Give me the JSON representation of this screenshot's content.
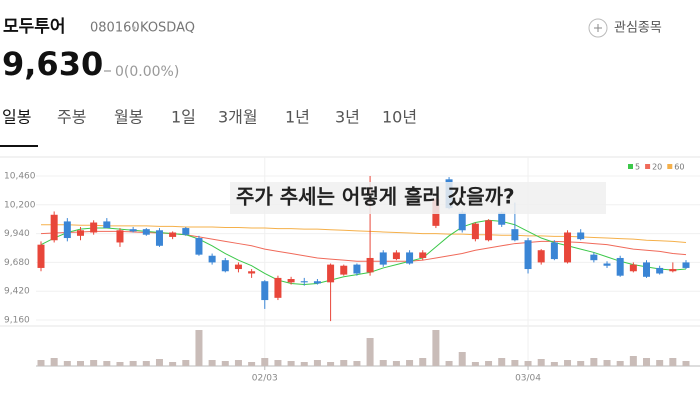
{
  "header": {
    "name": "모두투어",
    "code": "080160",
    "market": "KOSDAQ",
    "watchlist": "관심종목",
    "price": "9,630",
    "change": "0(0.00%)"
  },
  "tabs": [
    "일봉",
    "주봉",
    "월봉",
    "1일",
    "3개월",
    "1년",
    "3년",
    "10년"
  ],
  "selected_tab": 0,
  "chart_data": {
    "type": "candlestick",
    "annotation": "주가 추세는 어떻게 흘러 갔을까?",
    "categories": [
      null,
      null,
      null,
      null,
      null,
      null,
      null,
      null,
      null,
      null,
      null,
      null,
      null,
      null,
      null,
      null,
      null,
      "02/03",
      null,
      null,
      null,
      null,
      null,
      null,
      null,
      null,
      null,
      null,
      null,
      null,
      null,
      null,
      null,
      null,
      null,
      null,
      null,
      "03/04",
      null,
      null,
      null,
      null,
      null,
      null,
      null,
      null,
      null,
      null,
      null,
      null
    ],
    "open": [
      9630,
      9880,
      10050,
      9920,
      9950,
      10050,
      9860,
      9980,
      9980,
      9970,
      9910,
      9990,
      9900,
      9740,
      9700,
      9620,
      9580,
      9510,
      9360,
      9500,
      9510,
      9510,
      9500,
      9570,
      9660,
      9590,
      9770,
      9710,
      9770,
      9720,
      10010,
      10430,
      10130,
      9890,
      9880,
      10130,
      9980,
      9880,
      9680,
      9860,
      9680,
      9950,
      9750,
      9670,
      9720,
      9600,
      9680,
      9630,
      9600,
      9680
    ],
    "high": [
      9870,
      10140,
      10080,
      10000,
      10060,
      10080,
      9990,
      10000,
      9990,
      9990,
      9960,
      10000,
      9920,
      9760,
      9720,
      9680,
      9620,
      9520,
      9560,
      9550,
      9540,
      9530,
      9670,
      9660,
      9670,
      10460,
      9790,
      9790,
      9790,
      9790,
      10260,
      10450,
      10150,
      10040,
      10070,
      10140,
      10220,
      9900,
      9800,
      9880,
      9970,
      9980,
      9770,
      9690,
      9740,
      9680,
      9700,
      9650,
      9680,
      9700
    ],
    "low": [
      9600,
      9860,
      9870,
      9880,
      9930,
      9990,
      9820,
      9950,
      9920,
      9820,
      9890,
      9920,
      9740,
      9660,
      9590,
      9590,
      9540,
      9260,
      9340,
      9480,
      9470,
      9480,
      9150,
      9560,
      9560,
      9560,
      9640,
      9700,
      9660,
      9700,
      9990,
      10160,
      9950,
      9870,
      9870,
      10000,
      9870,
      9580,
      9660,
      9700,
      9670,
      9880,
      9680,
      9630,
      9550,
      9590,
      9540,
      9570,
      9590,
      9620
    ],
    "close": [
      9840,
      10110,
      9900,
      9970,
      10040,
      9990,
      9970,
      9960,
      9930,
      9830,
      9950,
      9930,
      9750,
      9680,
      9600,
      9660,
      9600,
      9340,
      9540,
      9530,
      9500,
      9490,
      9660,
      9650,
      9580,
      9720,
      9660,
      9770,
      9670,
      9770,
      10250,
      10170,
      9970,
      10030,
      10060,
      10020,
      9880,
      9620,
      9790,
      9710,
      9950,
      9890,
      9700,
      9650,
      9560,
      9660,
      9550,
      9580,
      9620,
      9630
    ],
    "volume": [
      6,
      8,
      5,
      5,
      6,
      5,
      4,
      5,
      5,
      7,
      4,
      6,
      36,
      6,
      5,
      6,
      4,
      8,
      6,
      5,
      4,
      6,
      4,
      6,
      5,
      28,
      6,
      5,
      6,
      8,
      36,
      5,
      14,
      4,
      5,
      8,
      6,
      5,
      7,
      4,
      6,
      5,
      8,
      6,
      5,
      10,
      8,
      6,
      8,
      5
    ],
    "up_color": "#e8463a",
    "down_color": "#3a85d5",
    "volume_color": "#c9bcb8",
    "series": [
      {
        "name": "5",
        "color": "#3cc84a",
        "values": [
          9840,
          9900,
          9950,
          9980,
          9990,
          9990,
          9980,
          9970,
          9960,
          9950,
          9940,
          9930,
          9890,
          9830,
          9760,
          9700,
          9650,
          9580,
          9520,
          9490,
          9480,
          9490,
          9520,
          9550,
          9570,
          9590,
          9630,
          9660,
          9690,
          9720,
          9820,
          9920,
          10000,
          10040,
          10060,
          10050,
          10020,
          9960,
          9900,
          9860,
          9830,
          9800,
          9770,
          9730,
          9690,
          9660,
          9640,
          9620,
          9610,
          9620
        ]
      },
      {
        "name": "20",
        "color": "#f06a5a",
        "values": [
          9940,
          9945,
          9950,
          9955,
          9960,
          9960,
          9960,
          9955,
          9950,
          9945,
          9940,
          9930,
          9910,
          9890,
          9870,
          9850,
          9830,
          9800,
          9780,
          9760,
          9740,
          9720,
          9710,
          9700,
          9690,
          9690,
          9690,
          9690,
          9690,
          9700,
          9720,
          9740,
          9760,
          9790,
          9810,
          9830,
          9850,
          9860,
          9870,
          9870,
          9865,
          9860,
          9850,
          9840,
          9820,
          9800,
          9790,
          9780,
          9760,
          9750
        ]
      },
      {
        "name": "60",
        "color": "#f5b04a",
        "values": [
          10020,
          10020,
          10020,
          10015,
          10015,
          10010,
          10010,
          10010,
          10010,
          10005,
          10005,
          10000,
          10000,
          10000,
          9995,
          9995,
          9990,
          9990,
          9985,
          9985,
          9980,
          9980,
          9975,
          9970,
          9965,
          9960,
          9955,
          9950,
          9945,
          9940,
          9940,
          9935,
          9935,
          9930,
          9930,
          9925,
          9925,
          9920,
          9920,
          9915,
          9915,
          9910,
          9905,
          9900,
          9895,
          9890,
          9880,
          9875,
          9870,
          9860
        ]
      }
    ],
    "ylim": [
      9160,
      10460
    ],
    "yticks": [
      {
        "value": 9160,
        "label": "9,160"
      },
      {
        "value": 9420,
        "label": "9,420"
      },
      {
        "value": 9680,
        "label": "9,680"
      },
      {
        "value": 9940,
        "label": "9,940"
      },
      {
        "value": 10200,
        "label": "10,200"
      },
      {
        "value": 10460,
        "label": "10,460"
      }
    ],
    "grid": true
  }
}
